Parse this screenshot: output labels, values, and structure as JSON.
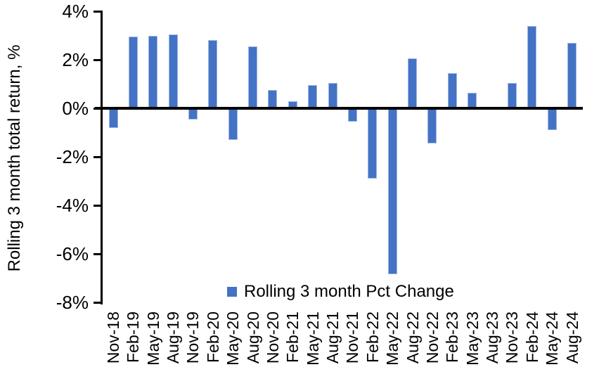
{
  "chart_data": {
    "type": "bar",
    "title": "",
    "ylabel": "Rolling 3 month total return, %",
    "xlabel": "",
    "legend_label": "Rolling 3 month Pct Change",
    "legend_position": "bottom-center",
    "grid": false,
    "ylim": [
      -8,
      4
    ],
    "ytick_labels": [
      "4%",
      "2%",
      "0%",
      "-2%",
      "-4%",
      "-6%",
      "-8%"
    ],
    "ytick_values": [
      4,
      2,
      0,
      -2,
      -4,
      -6,
      -8
    ],
    "categories": [
      "Nov-18",
      "Feb-19",
      "May-19",
      "Aug-19",
      "Nov-19",
      "Feb-20",
      "May-20",
      "Aug-20",
      "Nov-20",
      "Feb-21",
      "May-21",
      "Aug-21",
      "Nov-21",
      "Feb-22",
      "May-22",
      "Aug-22",
      "Nov-22",
      "Feb-23",
      "May-23",
      "Aug-23",
      "Nov-23",
      "Feb-24",
      "May-24",
      "Aug-24"
    ],
    "series": [
      {
        "name": "Rolling 3 month Pct Change",
        "values": [
          -0.8,
          2.95,
          3.0,
          3.05,
          -0.45,
          2.8,
          -1.3,
          2.55,
          0.75,
          0.3,
          0.95,
          1.05,
          -0.55,
          -2.9,
          -6.85,
          2.05,
          -1.45,
          1.45,
          0.65,
          0.0,
          1.05,
          3.4,
          -0.9,
          2.7
        ]
      }
    ],
    "colors": {
      "bar_fill": "#4472C4",
      "bar_border": "#9DB8E2",
      "axis": "#000000",
      "text": "#000000",
      "background": "#FFFFFF"
    }
  }
}
